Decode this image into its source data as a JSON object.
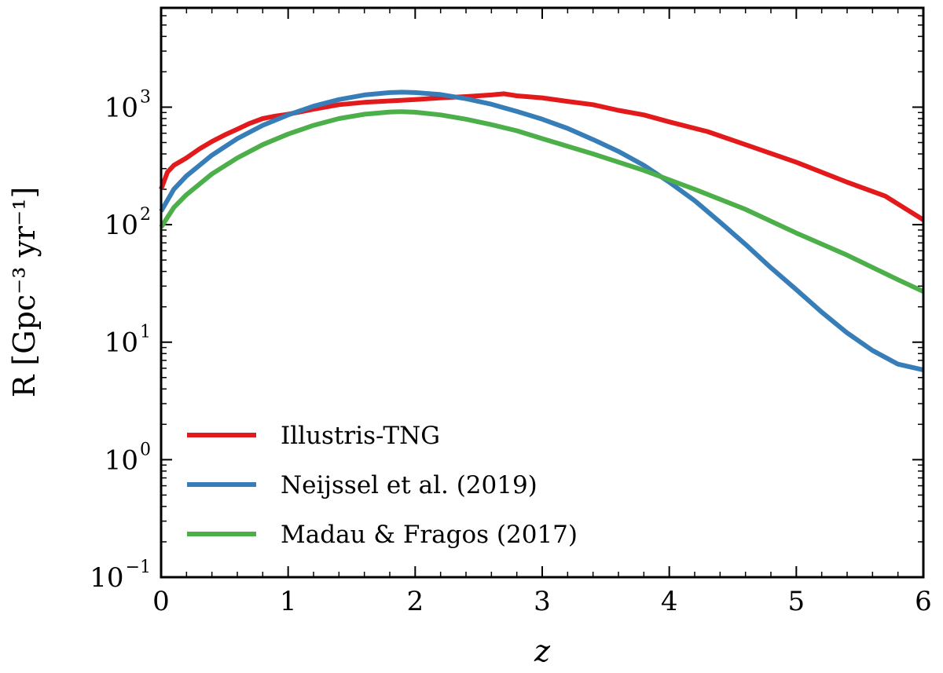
{
  "chart_data": {
    "type": "line",
    "title": "",
    "xlabel": "z",
    "ylabel": "R [Gpc⁻³ yr⁻¹]",
    "xlim": [
      0,
      6
    ],
    "ylim": [
      0.1,
      7000
    ],
    "yscale": "log",
    "grid": false,
    "legend_position": "bottom-left",
    "x_ticks": [
      0,
      1,
      2,
      3,
      4,
      5,
      6
    ],
    "x_tick_labels": [
      "0",
      "1",
      "2",
      "3",
      "4",
      "5",
      "6"
    ],
    "y_ticks": [
      {
        "value": 0.1,
        "base": "10",
        "exp": "−1"
      },
      {
        "value": 1,
        "base": "10",
        "exp": "0"
      },
      {
        "value": 10,
        "base": "10",
        "exp": "1"
      },
      {
        "value": 100,
        "base": "10",
        "exp": "2"
      },
      {
        "value": 1000,
        "base": "10",
        "exp": "3"
      }
    ],
    "series": [
      {
        "name": "Illustris-TNG",
        "color": "#e31a1c",
        "x": [
          0,
          0.05,
          0.1,
          0.2,
          0.3,
          0.4,
          0.5,
          0.6,
          0.7,
          0.8,
          0.9,
          1.0,
          1.2,
          1.4,
          1.6,
          1.8,
          2.0,
          2.2,
          2.4,
          2.6,
          2.7,
          2.8,
          3.0,
          3.2,
          3.4,
          3.6,
          3.8,
          4.0,
          4.3,
          4.6,
          5.0,
          5.4,
          5.7,
          6.0
        ],
        "values": [
          200,
          280,
          320,
          370,
          440,
          510,
          580,
          650,
          730,
          800,
          840,
          870,
          960,
          1050,
          1100,
          1130,
          1160,
          1200,
          1230,
          1270,
          1300,
          1250,
          1200,
          1120,
          1050,
          940,
          860,
          750,
          620,
          480,
          340,
          230,
          175,
          110
        ]
      },
      {
        "name": "Neijssel et al. (2019)",
        "color": "#377eb8",
        "x": [
          0,
          0.1,
          0.2,
          0.4,
          0.6,
          0.8,
          1.0,
          1.2,
          1.4,
          1.6,
          1.8,
          1.9,
          2.0,
          2.2,
          2.4,
          2.6,
          2.8,
          3.0,
          3.2,
          3.4,
          3.6,
          3.8,
          4.0,
          4.2,
          4.4,
          4.6,
          4.8,
          5.0,
          5.2,
          5.4,
          5.6,
          5.8,
          6.0
        ],
        "values": [
          130,
          200,
          260,
          390,
          540,
          700,
          860,
          1020,
          1160,
          1270,
          1330,
          1340,
          1330,
          1280,
          1180,
          1060,
          920,
          790,
          660,
          530,
          420,
          320,
          230,
          160,
          105,
          68,
          43,
          28,
          18,
          12,
          8.5,
          6.5,
          5.8
        ]
      },
      {
        "name": "Madau & Fragos (2017)",
        "color": "#4daf4a",
        "x": [
          0,
          0.1,
          0.2,
          0.4,
          0.6,
          0.8,
          1.0,
          1.2,
          1.4,
          1.6,
          1.8,
          1.9,
          2.0,
          2.2,
          2.4,
          2.6,
          2.8,
          3.0,
          3.4,
          3.8,
          4.2,
          4.6,
          5.0,
          5.4,
          5.8,
          6.0
        ],
        "values": [
          95,
          140,
          180,
          270,
          370,
          480,
          590,
          700,
          800,
          870,
          910,
          915,
          905,
          860,
          790,
          710,
          630,
          540,
          400,
          290,
          200,
          135,
          85,
          55,
          34,
          27
        ]
      }
    ]
  }
}
